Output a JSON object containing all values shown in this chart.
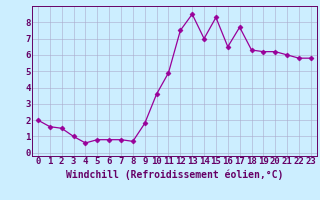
{
  "x": [
    0,
    1,
    2,
    3,
    4,
    5,
    6,
    7,
    8,
    9,
    10,
    11,
    12,
    13,
    14,
    15,
    16,
    17,
    18,
    19,
    20,
    21,
    22,
    23
  ],
  "y": [
    2.0,
    1.6,
    1.5,
    1.0,
    0.6,
    0.8,
    0.8,
    0.8,
    0.7,
    1.8,
    3.6,
    4.9,
    7.5,
    8.5,
    7.0,
    8.3,
    6.5,
    7.7,
    6.3,
    6.2,
    6.2,
    6.0,
    5.8,
    5.8
  ],
  "line_color": "#990099",
  "marker": "D",
  "marker_size": 2.5,
  "bg_color": "#cceeff",
  "grid_color": "#aaaacc",
  "xlabel": "Windchill (Refroidissement éolien,°C)",
  "xlabel_color": "#660066",
  "ylabel_ticks": [
    0,
    1,
    2,
    3,
    4,
    5,
    6,
    7,
    8
  ],
  "xlim": [
    -0.5,
    23.5
  ],
  "ylim": [
    -0.2,
    9.0
  ],
  "xtick_labels": [
    "0",
    "1",
    "2",
    "3",
    "4",
    "5",
    "6",
    "7",
    "8",
    "9",
    "10",
    "11",
    "12",
    "13",
    "14",
    "15",
    "16",
    "17",
    "18",
    "19",
    "20",
    "21",
    "22",
    "23"
  ],
  "tick_color": "#660066",
  "axis_label_fontsize": 7,
  "tick_fontsize": 6.5,
  "spine_color": "#660066"
}
